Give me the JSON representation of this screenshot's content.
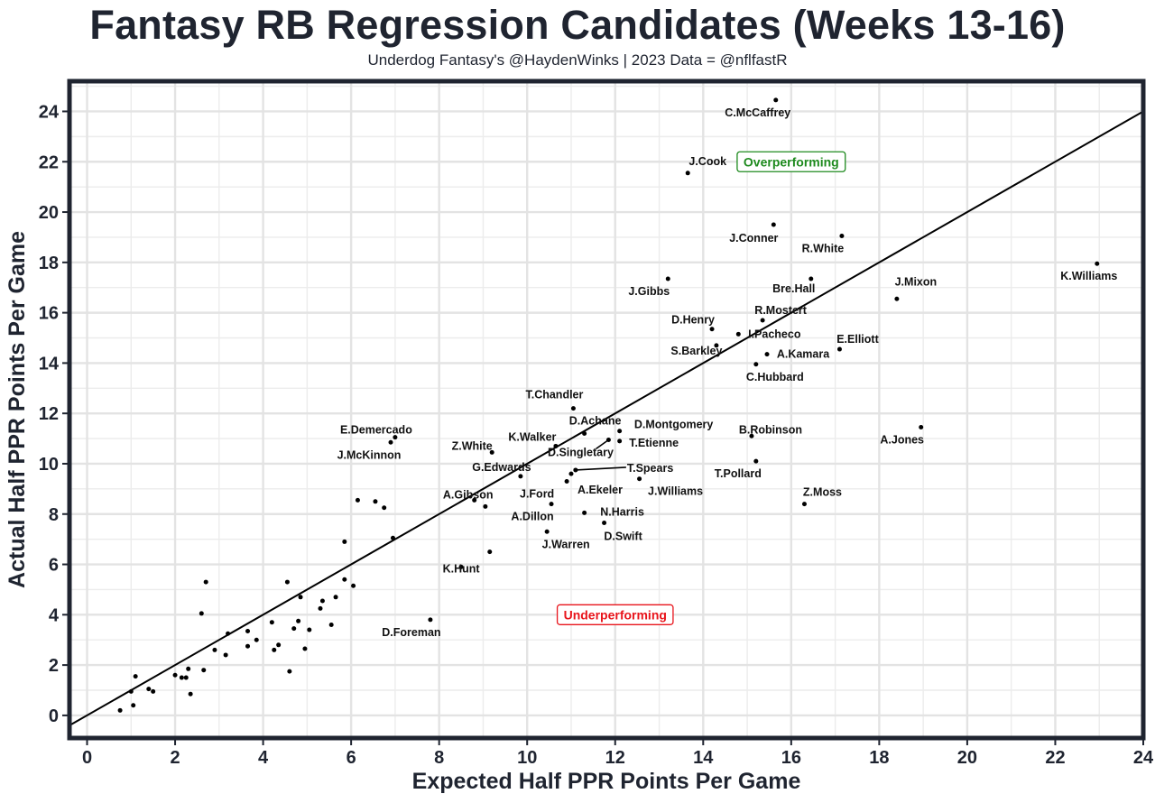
{
  "chart_data": {
    "type": "scatter",
    "title": "Fantasy RB Regression Candidates (Weeks 13-16)",
    "subtitle": "Underdog Fantasy's @HaydenWinks | 2023 Data = @nflfastR",
    "xlabel": "Expected Half PPR Points Per Game",
    "ylabel": "Actual Half PPR Points Per Game",
    "xlim": [
      -0.4,
      24
    ],
    "ylim": [
      -0.9,
      25.2
    ],
    "xticks": [
      0,
      2,
      4,
      6,
      8,
      10,
      12,
      14,
      16,
      18,
      20,
      22,
      24
    ],
    "yticks": [
      0,
      2,
      4,
      6,
      8,
      10,
      12,
      14,
      16,
      18,
      20,
      22,
      24
    ],
    "grid": true,
    "reference_line": "y = x",
    "annotations": [
      {
        "text": "Overperforming",
        "x": 16.0,
        "y": 22.0,
        "color": "#1e8a1e"
      },
      {
        "text": "Underperforming",
        "x": 12.0,
        "y": 4.0,
        "color": "#e8141b"
      }
    ],
    "labeled_points": [
      {
        "name": "C.McCaffrey",
        "x": 15.65,
        "y": 24.45
      },
      {
        "name": "J.Cook",
        "x": 13.65,
        "y": 21.55
      },
      {
        "name": "J.Conner",
        "x": 15.6,
        "y": 19.5
      },
      {
        "name": "R.White",
        "x": 17.15,
        "y": 19.05
      },
      {
        "name": "K.Williams",
        "x": 22.95,
        "y": 17.95
      },
      {
        "name": "J.Gibbs",
        "x": 13.2,
        "y": 17.35
      },
      {
        "name": "Bre.Hall",
        "x": 16.45,
        "y": 17.35
      },
      {
        "name": "J.Mixon",
        "x": 18.4,
        "y": 16.55
      },
      {
        "name": "R.Mostert",
        "x": 15.35,
        "y": 15.7
      },
      {
        "name": "D.Henry",
        "x": 14.2,
        "y": 15.35
      },
      {
        "name": "I.Pacheco",
        "x": 14.8,
        "y": 15.15
      },
      {
        "name": "S.Barkley",
        "x": 14.3,
        "y": 14.7
      },
      {
        "name": "E.Elliott",
        "x": 17.1,
        "y": 14.55
      },
      {
        "name": "A.Kamara",
        "x": 15.45,
        "y": 14.35
      },
      {
        "name": "C.Hubbard",
        "x": 15.2,
        "y": 13.95
      },
      {
        "name": "T.Chandler",
        "x": 11.05,
        "y": 12.2
      },
      {
        "name": "D.Achane",
        "x": 11.3,
        "y": 11.2
      },
      {
        "name": "D.Montgomery",
        "x": 12.1,
        "y": 11.3
      },
      {
        "name": "B.Robinson",
        "x": 15.1,
        "y": 11.1
      },
      {
        "name": "A.Jones",
        "x": 18.95,
        "y": 11.45
      },
      {
        "name": "E.Demercado",
        "x": 7.0,
        "y": 11.05
      },
      {
        "name": "J.McKinnon",
        "x": 6.9,
        "y": 10.85
      },
      {
        "name": "K.Walker",
        "x": 10.65,
        "y": 10.7
      },
      {
        "name": "T.Etienne",
        "x": 12.1,
        "y": 10.9
      },
      {
        "name": "D.Singletary",
        "x": 11.85,
        "y": 10.95
      },
      {
        "name": "Z.White",
        "x": 9.2,
        "y": 10.45
      },
      {
        "name": "T.Pollard",
        "x": 15.2,
        "y": 10.1
      },
      {
        "name": "T.Spears",
        "x": 11.1,
        "y": 9.75
      },
      {
        "name": "G.Edwards",
        "x": 9.85,
        "y": 9.5
      },
      {
        "name": "A.Ekeler",
        "x": 11.0,
        "y": 9.6
      },
      {
        "name": "J.Williams",
        "x": 12.55,
        "y": 9.4
      },
      {
        "name": "J.Ford",
        "x": 10.9,
        "y": 9.3
      },
      {
        "name": "A.Gibson",
        "x": 8.8,
        "y": 8.55
      },
      {
        "name": "Z.Moss",
        "x": 16.3,
        "y": 8.4
      },
      {
        "name": "A.Dillon",
        "x": 10.55,
        "y": 8.4
      },
      {
        "name": "N.Harris",
        "x": 11.3,
        "y": 8.05
      },
      {
        "name": "D.Swift",
        "x": 11.75,
        "y": 7.65
      },
      {
        "name": "J.Warren",
        "x": 10.45,
        "y": 7.3
      },
      {
        "name": "K.Hunt",
        "x": 8.5,
        "y": 5.9
      },
      {
        "name": "D.Foreman",
        "x": 7.8,
        "y": 3.8
      }
    ],
    "unlabeled_points": [
      [
        9.15,
        6.5
      ],
      [
        9.05,
        8.3
      ],
      [
        6.95,
        7.05
      ],
      [
        6.75,
        8.25
      ],
      [
        6.55,
        8.5
      ],
      [
        6.15,
        8.55
      ],
      [
        5.85,
        6.9
      ],
      [
        5.85,
        5.4
      ],
      [
        6.05,
        5.15
      ],
      [
        5.65,
        4.7
      ],
      [
        5.55,
        3.6
      ],
      [
        5.35,
        4.55
      ],
      [
        5.3,
        4.25
      ],
      [
        5.05,
        3.4
      ],
      [
        4.95,
        2.65
      ],
      [
        4.85,
        4.7
      ],
      [
        4.8,
        3.75
      ],
      [
        4.7,
        3.45
      ],
      [
        4.55,
        5.3
      ],
      [
        4.6,
        1.75
      ],
      [
        4.35,
        2.8
      ],
      [
        4.2,
        3.7
      ],
      [
        4.25,
        2.6
      ],
      [
        3.85,
        3.0
      ],
      [
        3.65,
        3.35
      ],
      [
        3.65,
        2.75
      ],
      [
        3.2,
        3.25
      ],
      [
        3.15,
        2.4
      ],
      [
        2.9,
        2.6
      ],
      [
        2.7,
        5.3
      ],
      [
        2.6,
        4.05
      ],
      [
        2.65,
        1.8
      ],
      [
        2.3,
        1.85
      ],
      [
        2.35,
        0.85
      ],
      [
        2.25,
        1.5
      ],
      [
        2.15,
        1.5
      ],
      [
        2.0,
        1.6
      ],
      [
        1.5,
        0.95
      ],
      [
        1.4,
        1.05
      ],
      [
        1.1,
        1.55
      ],
      [
        1.0,
        0.95
      ],
      [
        1.05,
        0.4
      ],
      [
        0.75,
        0.2
      ]
    ]
  }
}
